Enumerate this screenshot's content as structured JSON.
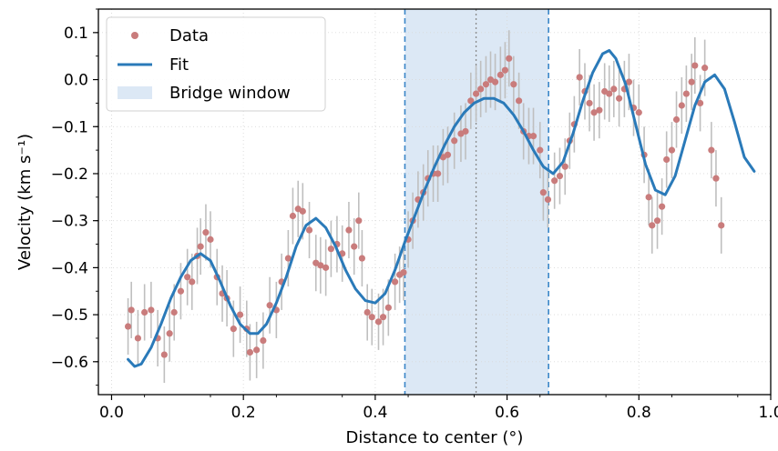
{
  "chart_data": {
    "type": "scatter",
    "title": "",
    "xlabel": "Distance to center (°)",
    "ylabel": "Velocity (km s⁻¹)",
    "xlim": [
      -0.02,
      1.0
    ],
    "ylim": [
      -0.67,
      0.15
    ],
    "xticks": [
      0.0,
      0.2,
      0.4,
      0.6,
      0.8,
      1.0
    ],
    "xtick_labels": [
      "0.0",
      "0.2",
      "0.4",
      "0.6",
      "0.8",
      "1.0"
    ],
    "yticks": [
      0.1,
      0.0,
      -0.1,
      -0.2,
      -0.3,
      -0.4,
      -0.5,
      -0.6
    ],
    "ytick_labels": [
      "0.1",
      "0.0",
      "−0.1",
      "−0.2",
      "−0.3",
      "−0.4",
      "−0.5",
      "−0.6"
    ],
    "grid": true,
    "legend": {
      "location": "upper-left",
      "entries": [
        "Data",
        "Fit",
        "Bridge window"
      ]
    },
    "colors": {
      "data": "#c97c7c",
      "errorbar": "#bfbfbf",
      "fit": "#2a7ab9",
      "window_fill": "#dce8f5",
      "window_edge": "#3a86c8",
      "center_line": "#8a8a8a"
    },
    "bridge_window": {
      "x_start": 0.445,
      "x_end": 0.663,
      "center": 0.553
    },
    "series": [
      {
        "name": "Data",
        "kind": "scatter_with_errorbars",
        "error": 0.06,
        "points": [
          [
            0.025,
            -0.525
          ],
          [
            0.03,
            -0.49
          ],
          [
            0.04,
            -0.55
          ],
          [
            0.05,
            -0.495
          ],
          [
            0.06,
            -0.49
          ],
          [
            0.07,
            -0.55
          ],
          [
            0.08,
            -0.585
          ],
          [
            0.088,
            -0.54
          ],
          [
            0.095,
            -0.495
          ],
          [
            0.105,
            -0.45
          ],
          [
            0.115,
            -0.42
          ],
          [
            0.122,
            -0.43
          ],
          [
            0.13,
            -0.375
          ],
          [
            0.135,
            -0.355
          ],
          [
            0.143,
            -0.325
          ],
          [
            0.15,
            -0.34
          ],
          [
            0.16,
            -0.42
          ],
          [
            0.168,
            -0.455
          ],
          [
            0.175,
            -0.465
          ],
          [
            0.185,
            -0.53
          ],
          [
            0.195,
            -0.5
          ],
          [
            0.205,
            -0.53
          ],
          [
            0.21,
            -0.58
          ],
          [
            0.22,
            -0.575
          ],
          [
            0.23,
            -0.555
          ],
          [
            0.24,
            -0.48
          ],
          [
            0.25,
            -0.49
          ],
          [
            0.258,
            -0.43
          ],
          [
            0.268,
            -0.38
          ],
          [
            0.275,
            -0.29
          ],
          [
            0.283,
            -0.275
          ],
          [
            0.29,
            -0.28
          ],
          [
            0.3,
            -0.32
          ],
          [
            0.31,
            -0.39
          ],
          [
            0.317,
            -0.395
          ],
          [
            0.325,
            -0.4
          ],
          [
            0.333,
            -0.36
          ],
          [
            0.342,
            -0.35
          ],
          [
            0.35,
            -0.37
          ],
          [
            0.36,
            -0.32
          ],
          [
            0.368,
            -0.355
          ],
          [
            0.375,
            -0.3
          ],
          [
            0.38,
            -0.38
          ],
          [
            0.388,
            -0.495
          ],
          [
            0.395,
            -0.505
          ],
          [
            0.405,
            -0.515
          ],
          [
            0.412,
            -0.505
          ],
          [
            0.42,
            -0.485
          ],
          [
            0.43,
            -0.43
          ],
          [
            0.437,
            -0.415
          ],
          [
            0.443,
            -0.41
          ],
          [
            0.45,
            -0.34
          ],
          [
            0.457,
            -0.3
          ],
          [
            0.465,
            -0.255
          ],
          [
            0.473,
            -0.24
          ],
          [
            0.48,
            -0.21
          ],
          [
            0.488,
            -0.2
          ],
          [
            0.495,
            -0.2
          ],
          [
            0.503,
            -0.165
          ],
          [
            0.51,
            -0.16
          ],
          [
            0.52,
            -0.13
          ],
          [
            0.53,
            -0.115
          ],
          [
            0.537,
            -0.11
          ],
          [
            0.545,
            -0.045
          ],
          [
            0.553,
            -0.03
          ],
          [
            0.56,
            -0.02
          ],
          [
            0.568,
            -0.01
          ],
          [
            0.575,
            0.0
          ],
          [
            0.582,
            -0.005
          ],
          [
            0.59,
            0.01
          ],
          [
            0.597,
            0.02
          ],
          [
            0.603,
            0.045
          ],
          [
            0.61,
            -0.01
          ],
          [
            0.618,
            -0.045
          ],
          [
            0.625,
            -0.11
          ],
          [
            0.633,
            -0.12
          ],
          [
            0.64,
            -0.12
          ],
          [
            0.65,
            -0.15
          ],
          [
            0.655,
            -0.24
          ],
          [
            0.662,
            -0.255
          ],
          [
            0.672,
            -0.215
          ],
          [
            0.68,
            -0.205
          ],
          [
            0.688,
            -0.185
          ],
          [
            0.695,
            -0.13
          ],
          [
            0.702,
            -0.095
          ],
          [
            0.71,
            0.005
          ],
          [
            0.718,
            -0.025
          ],
          [
            0.725,
            -0.05
          ],
          [
            0.732,
            -0.07
          ],
          [
            0.74,
            -0.065
          ],
          [
            0.748,
            -0.025
          ],
          [
            0.755,
            -0.03
          ],
          [
            0.762,
            -0.02
          ],
          [
            0.77,
            -0.04
          ],
          [
            0.778,
            -0.02
          ],
          [
            0.785,
            -0.005
          ],
          [
            0.792,
            -0.06
          ],
          [
            0.8,
            -0.07
          ],
          [
            0.808,
            -0.16
          ],
          [
            0.815,
            -0.25
          ],
          [
            0.82,
            -0.31
          ],
          [
            0.828,
            -0.3
          ],
          [
            0.835,
            -0.27
          ],
          [
            0.842,
            -0.17
          ],
          [
            0.85,
            -0.15
          ],
          [
            0.857,
            -0.085
          ],
          [
            0.865,
            -0.055
          ],
          [
            0.872,
            -0.03
          ],
          [
            0.88,
            -0.005
          ],
          [
            0.885,
            0.03
          ],
          [
            0.893,
            -0.05
          ],
          [
            0.9,
            0.025
          ],
          [
            0.91,
            -0.15
          ],
          [
            0.917,
            -0.21
          ],
          [
            0.925,
            -0.31
          ]
        ]
      },
      {
        "name": "Fit",
        "kind": "line",
        "points": [
          [
            0.025,
            -0.595
          ],
          [
            0.035,
            -0.61
          ],
          [
            0.045,
            -0.605
          ],
          [
            0.06,
            -0.57
          ],
          [
            0.075,
            -0.52
          ],
          [
            0.09,
            -0.465
          ],
          [
            0.105,
            -0.42
          ],
          [
            0.12,
            -0.385
          ],
          [
            0.135,
            -0.37
          ],
          [
            0.15,
            -0.385
          ],
          [
            0.165,
            -0.43
          ],
          [
            0.18,
            -0.48
          ],
          [
            0.195,
            -0.52
          ],
          [
            0.21,
            -0.54
          ],
          [
            0.222,
            -0.54
          ],
          [
            0.235,
            -0.52
          ],
          [
            0.25,
            -0.475
          ],
          [
            0.265,
            -0.42
          ],
          [
            0.28,
            -0.355
          ],
          [
            0.295,
            -0.31
          ],
          [
            0.31,
            -0.295
          ],
          [
            0.325,
            -0.315
          ],
          [
            0.34,
            -0.355
          ],
          [
            0.355,
            -0.405
          ],
          [
            0.37,
            -0.445
          ],
          [
            0.385,
            -0.47
          ],
          [
            0.4,
            -0.475
          ],
          [
            0.415,
            -0.455
          ],
          [
            0.43,
            -0.405
          ],
          [
            0.445,
            -0.345
          ],
          [
            0.46,
            -0.29
          ],
          [
            0.475,
            -0.235
          ],
          [
            0.49,
            -0.185
          ],
          [
            0.505,
            -0.14
          ],
          [
            0.52,
            -0.1
          ],
          [
            0.535,
            -0.07
          ],
          [
            0.55,
            -0.05
          ],
          [
            0.565,
            -0.04
          ],
          [
            0.58,
            -0.04
          ],
          [
            0.595,
            -0.05
          ],
          [
            0.61,
            -0.075
          ],
          [
            0.625,
            -0.11
          ],
          [
            0.64,
            -0.15
          ],
          [
            0.655,
            -0.185
          ],
          [
            0.67,
            -0.2
          ],
          [
            0.685,
            -0.175
          ],
          [
            0.7,
            -0.115
          ],
          [
            0.715,
            -0.045
          ],
          [
            0.73,
            0.015
          ],
          [
            0.745,
            0.055
          ],
          [
            0.755,
            0.062
          ],
          [
            0.765,
            0.045
          ],
          [
            0.78,
            -0.01
          ],
          [
            0.795,
            -0.095
          ],
          [
            0.81,
            -0.18
          ],
          [
            0.825,
            -0.235
          ],
          [
            0.84,
            -0.245
          ],
          [
            0.855,
            -0.205
          ],
          [
            0.87,
            -0.13
          ],
          [
            0.885,
            -0.055
          ],
          [
            0.9,
            -0.005
          ],
          [
            0.915,
            0.01
          ],
          [
            0.93,
            -0.02
          ],
          [
            0.945,
            -0.09
          ],
          [
            0.96,
            -0.165
          ],
          [
            0.975,
            -0.195
          ]
        ]
      }
    ]
  }
}
